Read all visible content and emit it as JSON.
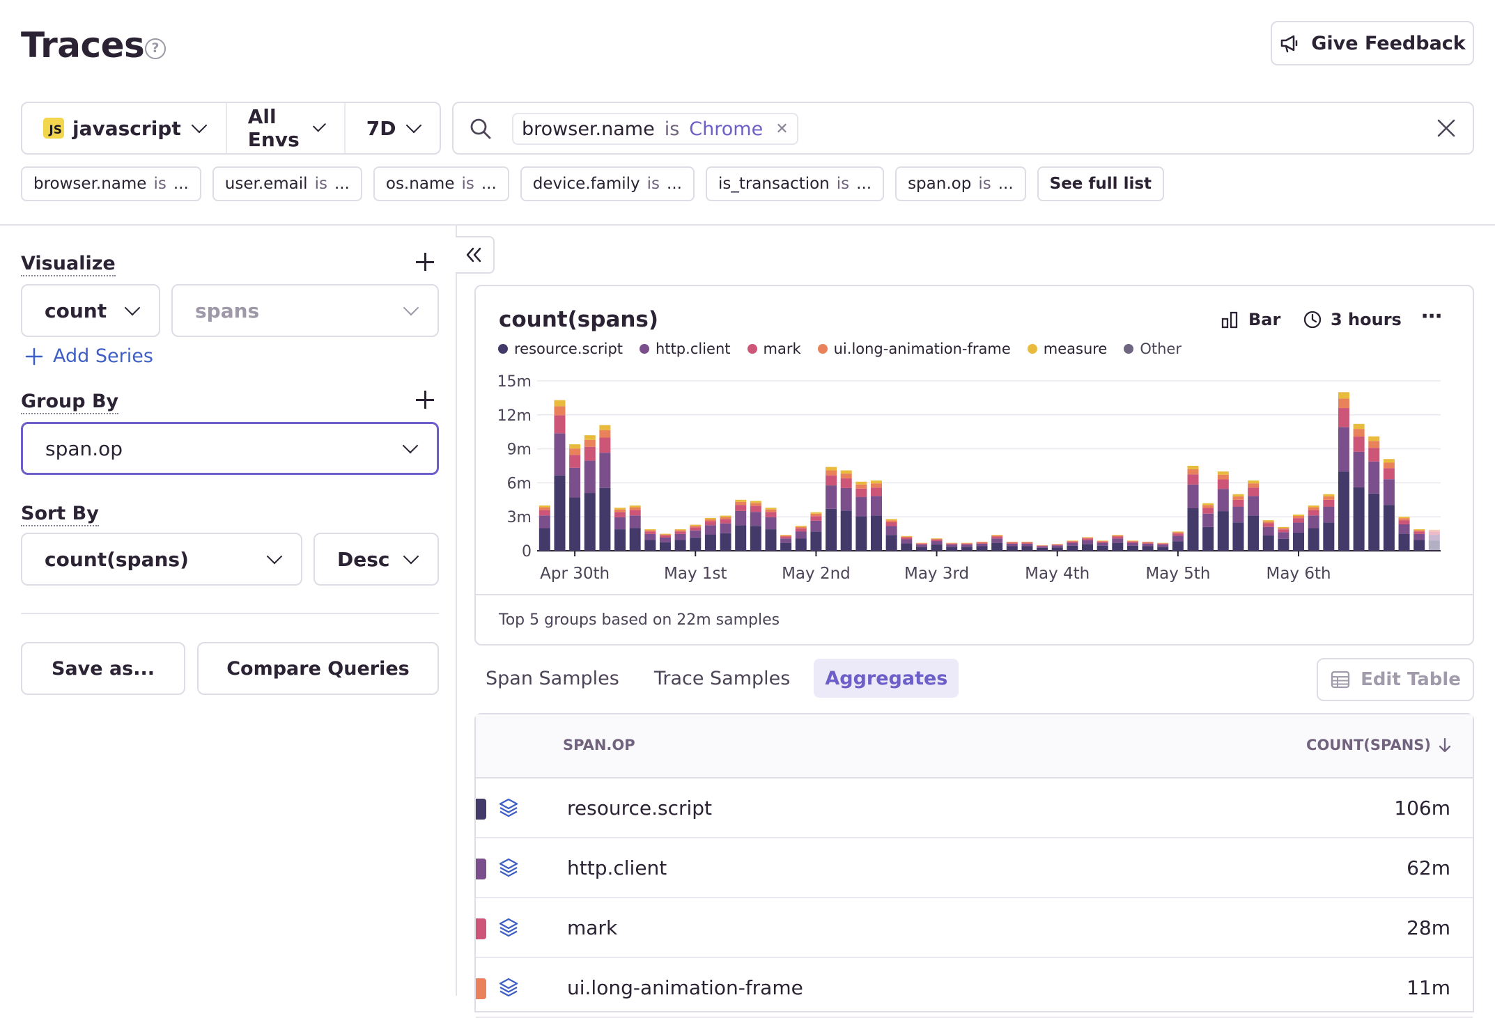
{
  "header": {
    "title": "Traces",
    "feedback_label": "Give Feedback"
  },
  "filters": {
    "project": {
      "badge": "JS",
      "label": "javascript"
    },
    "env_label": "All Envs",
    "period_label": "7D"
  },
  "search": {
    "token": {
      "key": "browser.name",
      "op": "is",
      "value": "Chrome"
    }
  },
  "suggestions": [
    {
      "key": "browser.name",
      "op": "is",
      "value": "..."
    },
    {
      "key": "user.email",
      "op": "is",
      "value": "..."
    },
    {
      "key": "os.name",
      "op": "is",
      "value": "..."
    },
    {
      "key": "device.family",
      "op": "is",
      "value": "..."
    },
    {
      "key": "is_transaction",
      "op": "is",
      "value": "..."
    },
    {
      "key": "span.op",
      "op": "is",
      "value": "..."
    }
  ],
  "see_full_list": "See full list",
  "sidebar": {
    "visualize_label": "Visualize",
    "function_value": "count",
    "field_value": "spans",
    "add_series": "Add Series",
    "group_by_label": "Group By",
    "group_by_value": "span.op",
    "sort_by_label": "Sort By",
    "sort_field_value": "count(spans)",
    "sort_order_value": "Desc",
    "save_label": "Save as...",
    "compare_label": "Compare Queries"
  },
  "chart_panel": {
    "title": "count(spans)",
    "type_label": "Bar",
    "interval_label": "3 hours",
    "footer": "Top 5 groups based on 22m samples"
  },
  "colors": {
    "resource.script": "#443a6a",
    "http.client": "#7b4f8c",
    "mark": "#cc5578",
    "ui.long-animation-frame": "#e9825a",
    "measure": "#e8bb3c",
    "Other": "#6e6680",
    "accent": "#6c5fc7"
  },
  "chart_data": {
    "type": "bar",
    "stacked": true,
    "title": "count(spans)",
    "ylim": [
      0,
      15
    ],
    "y_unit": "m",
    "y_ticks": [
      "0",
      "3m",
      "6m",
      "9m",
      "12m",
      "15m"
    ],
    "x_ticks": [
      "Apr 30th",
      "May 1st",
      "May 2nd",
      "May 3rd",
      "May 4th",
      "May 5th",
      "May 6th"
    ],
    "legend": [
      "resource.script",
      "http.client",
      "mark",
      "ui.long-animation-frame",
      "measure",
      "Other"
    ],
    "totals": [
      4.0,
      13.3,
      9.4,
      10.2,
      11.1,
      3.8,
      4.0,
      1.9,
      1.5,
      1.9,
      2.3,
      2.9,
      3.1,
      4.5,
      4.4,
      3.8,
      1.4,
      2.2,
      3.4,
      7.4,
      7.1,
      6.1,
      6.2,
      2.8,
      1.3,
      0.7,
      1.1,
      0.7,
      0.7,
      0.8,
      1.4,
      0.8,
      0.8,
      0.5,
      0.6,
      0.9,
      1.2,
      0.9,
      1.4,
      0.9,
      0.8,
      0.7,
      1.7,
      7.5,
      4.2,
      7.0,
      5.0,
      6.2,
      2.7,
      2.1,
      3.2,
      4.0,
      5.0,
      14.0,
      11.2,
      10.1,
      8.1,
      3.0,
      1.9
    ],
    "shares": {
      "resource.script": 0.5,
      "http.client": 0.28,
      "mark": 0.12,
      "ui.long-animation-frame": 0.06,
      "measure": 0.04
    },
    "series_values_note_free": true
  },
  "results_tabs": [
    "Span Samples",
    "Trace Samples",
    "Aggregates"
  ],
  "edit_table_label": "Edit Table",
  "table": {
    "columns": [
      "SPAN.OP",
      "COUNT(SPANS)"
    ],
    "rows": [
      {
        "op": "resource.script",
        "count": "106m",
        "color": "#443a6a"
      },
      {
        "op": "http.client",
        "count": "62m",
        "color": "#7b4f8c"
      },
      {
        "op": "mark",
        "count": "28m",
        "color": "#cc5578"
      },
      {
        "op": "ui.long-animation-frame",
        "count": "11m",
        "color": "#e9825a"
      }
    ]
  }
}
